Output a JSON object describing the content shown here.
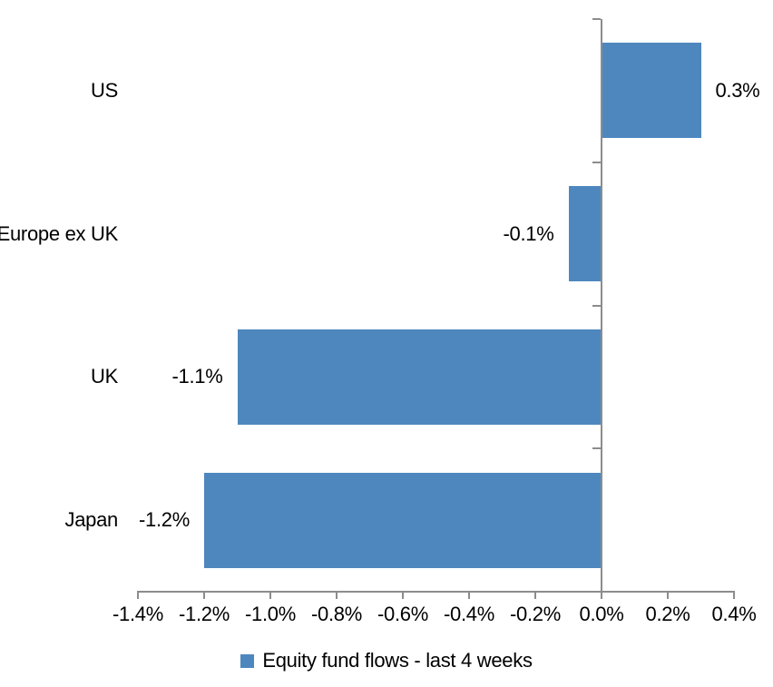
{
  "chart_data": {
    "type": "bar",
    "orientation": "horizontal",
    "title": "",
    "categories": [
      "US",
      "Europe ex UK",
      "UK",
      "Japan"
    ],
    "values": [
      0.3,
      -0.1,
      -1.1,
      -1.2
    ],
    "value_labels": [
      "0.3%",
      "-0.1%",
      "-1.1%",
      "-1.2%"
    ],
    "xlim": [
      -1.4,
      0.4
    ],
    "x_tick_values": [
      -1.4,
      -1.2,
      -1.0,
      -0.8,
      -0.6,
      -0.4,
      -0.2,
      0.0,
      0.2,
      0.4
    ],
    "x_tick_labels": [
      "-1.4%",
      "-1.2%",
      "-1.0%",
      "-0.8%",
      "-0.6%",
      "-0.4%",
      "-0.2%",
      "0.0%",
      "0.2%",
      "0.4%"
    ],
    "grid": false,
    "legend_position": "bottom",
    "legend": [
      {
        "label": "Equity fund flows - last 4 weeks",
        "color": "#4E87BE"
      }
    ],
    "colors": {
      "bar": "#4E87BE",
      "axis": "#8C8C8C",
      "text": "#000000",
      "background": "#FFFFFF"
    }
  }
}
